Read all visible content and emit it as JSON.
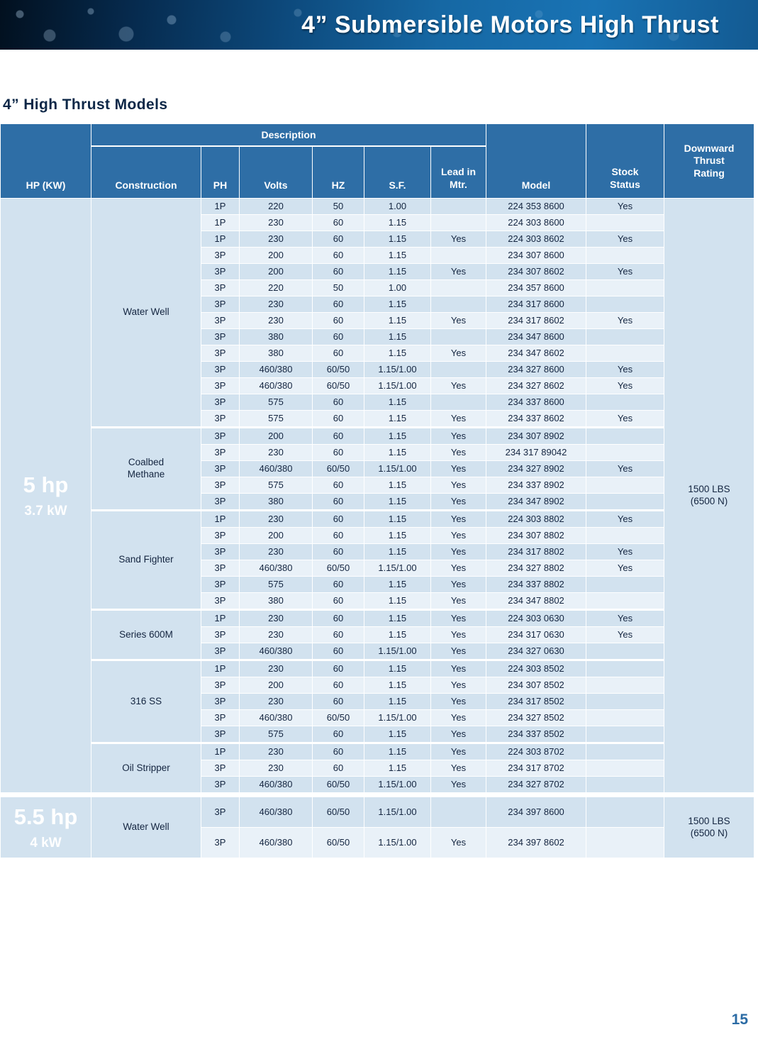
{
  "banner": {
    "title": "4” Submersible Motors High Thrust"
  },
  "section_title": "4” High Thrust Models",
  "page_number": "15",
  "table": {
    "headers": {
      "hp": "HP (KW)",
      "description": "Description",
      "construction": "Construction",
      "ph": "PH",
      "volts": "Volts",
      "hz": "HZ",
      "sf": "S.F.",
      "lead_in_mtr": "Lead in Mtr.",
      "model": "Model",
      "stock_status": "Stock Status",
      "downward_thrust": "Downward Thrust Rating"
    },
    "groups": [
      {
        "hp": "5 hp",
        "kw": "3.7 kW",
        "thrust": "1500 LBS (6500 N)",
        "sections": [
          {
            "construction": "Water Well",
            "rows": [
              [
                "1P",
                "220",
                "50",
                "1.00",
                "",
                "224 353 8600",
                "Yes"
              ],
              [
                "1P",
                "230",
                "60",
                "1.15",
                "",
                "224 303 8600",
                ""
              ],
              [
                "1P",
                "230",
                "60",
                "1.15",
                "Yes",
                "224 303 8602",
                "Yes"
              ],
              [
                "3P",
                "200",
                "60",
                "1.15",
                "",
                "234 307 8600",
                ""
              ],
              [
                "3P",
                "200",
                "60",
                "1.15",
                "Yes",
                "234 307 8602",
                "Yes"
              ],
              [
                "3P",
                "220",
                "50",
                "1.00",
                "",
                "234 357 8600",
                ""
              ],
              [
                "3P",
                "230",
                "60",
                "1.15",
                "",
                "234 317 8600",
                ""
              ],
              [
                "3P",
                "230",
                "60",
                "1.15",
                "Yes",
                "234 317 8602",
                "Yes"
              ],
              [
                "3P",
                "380",
                "60",
                "1.15",
                "",
                "234 347 8600",
                ""
              ],
              [
                "3P",
                "380",
                "60",
                "1.15",
                "Yes",
                "234 347 8602",
                ""
              ],
              [
                "3P",
                "460/380",
                "60/50",
                "1.15/1.00",
                "",
                "234 327 8600",
                "Yes"
              ],
              [
                "3P",
                "460/380",
                "60/50",
                "1.15/1.00",
                "Yes",
                "234 327 8602",
                "Yes"
              ],
              [
                "3P",
                "575",
                "60",
                "1.15",
                "",
                "234 337 8600",
                ""
              ],
              [
                "3P",
                "575",
                "60",
                "1.15",
                "Yes",
                "234 337 8602",
                "Yes"
              ]
            ]
          },
          {
            "construction": "Coalbed Methane",
            "rows": [
              [
                "3P",
                "200",
                "60",
                "1.15",
                "Yes",
                "234 307 8902",
                ""
              ],
              [
                "3P",
                "230",
                "60",
                "1.15",
                "Yes",
                "234 317 89042",
                ""
              ],
              [
                "3P",
                "460/380",
                "60/50",
                "1.15/1.00",
                "Yes",
                "234 327 8902",
                "Yes"
              ],
              [
                "3P",
                "575",
                "60",
                "1.15",
                "Yes",
                "234 337 8902",
                ""
              ],
              [
                "3P",
                "380",
                "60",
                "1.15",
                "Yes",
                "234 347 8902",
                ""
              ]
            ]
          },
          {
            "construction": "Sand Fighter",
            "rows": [
              [
                "1P",
                "230",
                "60",
                "1.15",
                "Yes",
                "224 303 8802",
                "Yes"
              ],
              [
                "3P",
                "200",
                "60",
                "1.15",
                "Yes",
                "234 307 8802",
                ""
              ],
              [
                "3P",
                "230",
                "60",
                "1.15",
                "Yes",
                "234 317 8802",
                "Yes"
              ],
              [
                "3P",
                "460/380",
                "60/50",
                "1.15/1.00",
                "Yes",
                "234 327 8802",
                "Yes"
              ],
              [
                "3P",
                "575",
                "60",
                "1.15",
                "Yes",
                "234 337 8802",
                ""
              ],
              [
                "3P",
                "380",
                "60",
                "1.15",
                "Yes",
                "234 347 8802",
                ""
              ]
            ]
          },
          {
            "construction": "Series 600M",
            "rows": [
              [
                "1P",
                "230",
                "60",
                "1.15",
                "Yes",
                "224 303 0630",
                "Yes"
              ],
              [
                "3P",
                "230",
                "60",
                "1.15",
                "Yes",
                "234 317 0630",
                "Yes"
              ],
              [
                "3P",
                "460/380",
                "60",
                "1.15/1.00",
                "Yes",
                "234 327 0630",
                ""
              ]
            ]
          },
          {
            "construction": "316 SS",
            "rows": [
              [
                "1P",
                "230",
                "60",
                "1.15",
                "Yes",
                "224 303 8502",
                ""
              ],
              [
                "3P",
                "200",
                "60",
                "1.15",
                "Yes",
                "234 307 8502",
                ""
              ],
              [
                "3P",
                "230",
                "60",
                "1.15",
                "Yes",
                "234 317 8502",
                ""
              ],
              [
                "3P",
                "460/380",
                "60/50",
                "1.15/1.00",
                "Yes",
                "234 327 8502",
                ""
              ],
              [
                "3P",
                "575",
                "60",
                "1.15",
                "Yes",
                "234 337 8502",
                ""
              ]
            ]
          },
          {
            "construction": "Oil Stripper",
            "rows": [
              [
                "1P",
                "230",
                "60",
                "1.15",
                "Yes",
                "224 303 8702",
                ""
              ],
              [
                "3P",
                "230",
                "60",
                "1.15",
                "Yes",
                "234 317 8702",
                ""
              ],
              [
                "3P",
                "460/380",
                "60/50",
                "1.15/1.00",
                "Yes",
                "234 327 8702",
                ""
              ]
            ]
          }
        ]
      },
      {
        "hp": "5.5 hp",
        "kw": "4 kW",
        "thrust": "1500 LBS (6500 N)",
        "sections": [
          {
            "construction": "Water Well",
            "rows": [
              [
                "3P",
                "460/380",
                "60/50",
                "1.15/1.00",
                "",
                "234 397 8600",
                ""
              ],
              [
                "3P",
                "460/380",
                "60/50",
                "1.15/1.00",
                "Yes",
                "234 397 8602",
                ""
              ]
            ]
          }
        ]
      }
    ]
  }
}
